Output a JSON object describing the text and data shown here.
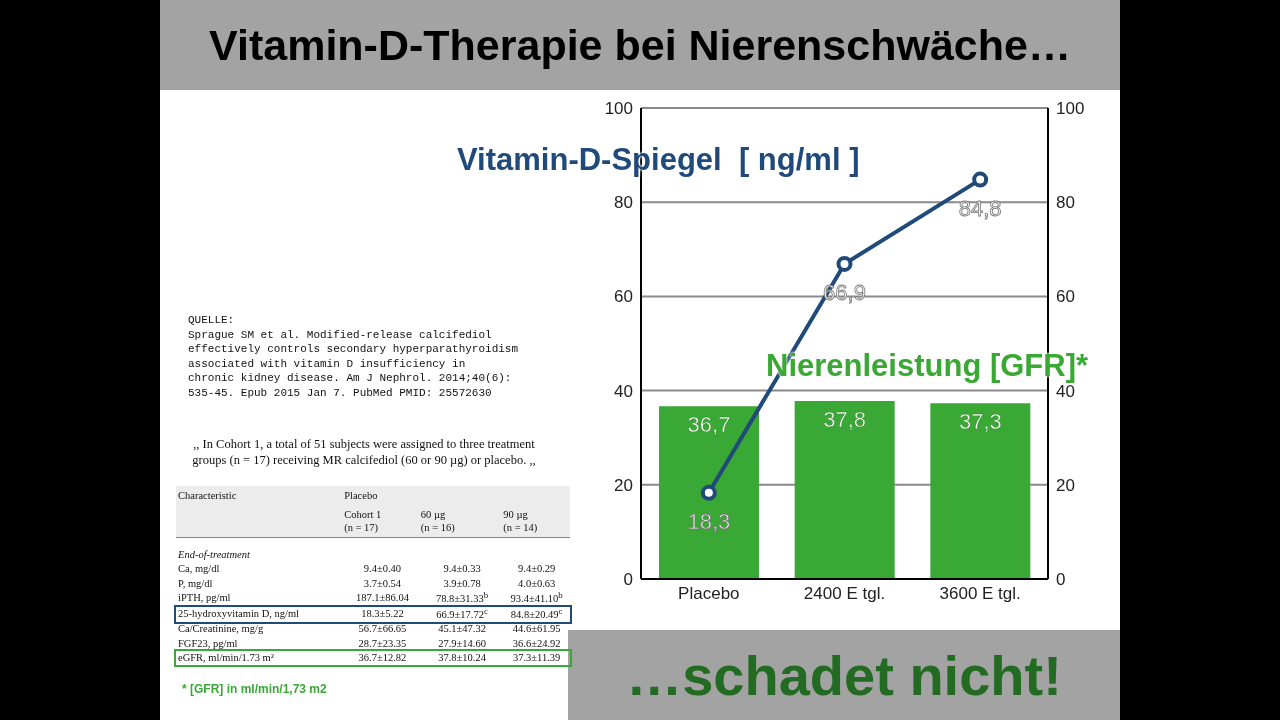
{
  "chart_data": {
    "type": "bar",
    "title": "Vitamin-D-Therapie bei Nierenschwäche…",
    "subtitle": "…schadet nicht!",
    "categories": [
      "Placebo",
      "2400 E tgl.",
      "3600 E tgl."
    ],
    "series": [
      {
        "name": "Nierenleistung [GFR]*",
        "color": "#3aa835",
        "values": [
          36.7,
          37.8,
          37.3
        ],
        "value_labels": [
          "36,7",
          "37,8",
          "37,3"
        ]
      },
      {
        "name": "Vitamin-D-Spiegel  [ ng/ml ]",
        "type": "line",
        "color": "#1f4a7a",
        "values": [
          18.3,
          66.9,
          84.8
        ],
        "value_labels": [
          "18,3",
          "66,9",
          "84,8"
        ]
      }
    ],
    "ylim": [
      0,
      100
    ],
    "yticks": [
      0,
      20,
      40,
      60,
      80,
      100
    ],
    "y2lim": [
      0,
      100
    ],
    "y2ticks": [
      0,
      20,
      40,
      60,
      80,
      100
    ],
    "grid": "y",
    "legend": false,
    "marker": "circle",
    "line_style": "solid",
    "annotations": [
      "QUELLE:\nSprague SM et al. Modified-release calcifediol\neffectively controls secondary hyperparathyroidism\nassociated with vitamin D insufficiency in\nchronic kidney disease. Am J Nephrol. 2014;40(6):\n535-45. Epub 2015 Jan 7. PubMed PMID: 25572630",
      ",, In Cohort 1, a total of 51 subjects were assigned to three treatment groups (n = 17) receiving MR calcifediol (60 or 90 µg) or placebo. ,,",
      "Characteristic\tPlacebo\t\t",
      "\tCohort 1\n(n = 17)\t60 µg\n(n = 16)\t90 µg\n(n = 14)",
      "End-of-treatment\t\t\t",
      "Ca, mg/dl\t9.4±0.40\t9.4±0.33\t9.4±0.29",
      "P, mg/dl\t3.7±0.54\t3.9±0.78\t4.0±0.63",
      "iPTH, pg/ml\t187.1±86.04\t78.8±31.33$^{b}$\t93.4±41.10$^{b}$",
      "25-hydroxyvitamin D, ng/ml\t18.3±5.22\t66.9±17.72$^{c}$\t84.8±20.49$^{c}$",
      "Ca/Creatinine, mg/g\t56.7±66.65\t45.1±47.32\t44.6±61.95",
      "FGF23, pg/ml\t28.7±23.35\t27.9±14.60\t36.6±24.92",
      "eGFR, ml/min/1.73 m²\t36.7±12.82\t37.8±10.24\t37.3±11.39",
      "* [GFR] in ml/min/1,73 m2"
    ]
  }
}
